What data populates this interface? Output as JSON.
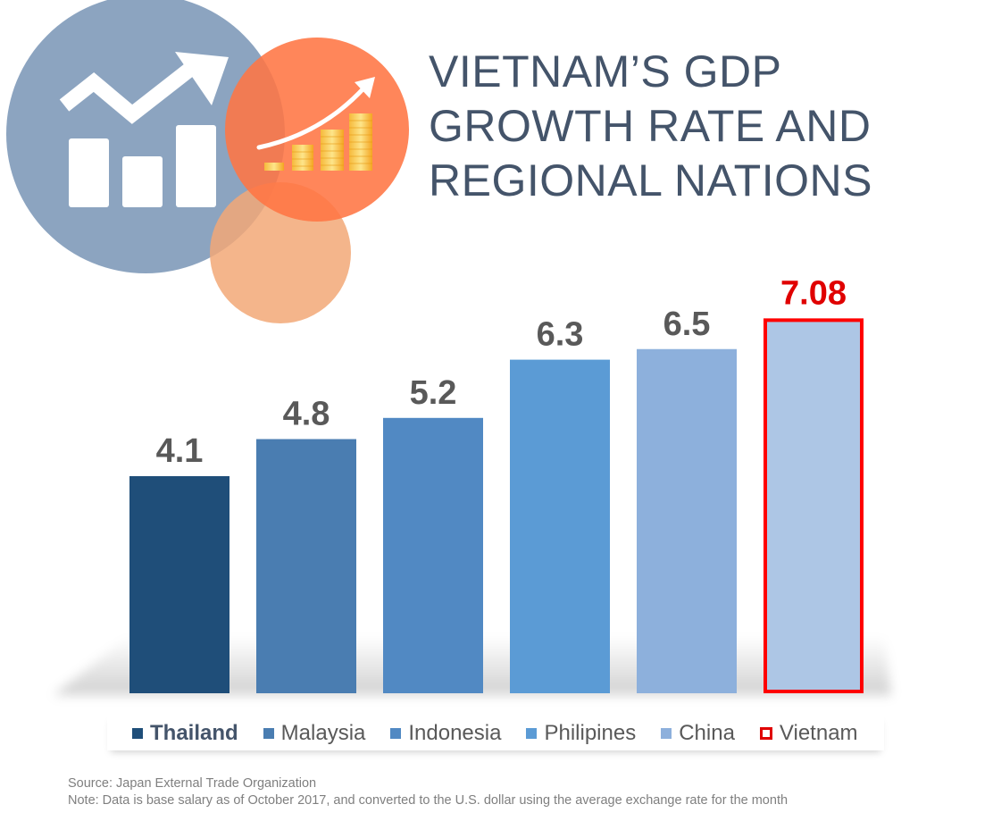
{
  "title_lines": [
    "VIETNAM’S GDP",
    "GROWTH RATE AND",
    "REGIONAL NATIONS"
  ],
  "chart_data": {
    "type": "bar",
    "title": "VIETNAM’S GDP GROWTH RATE AND REGIONAL NATIONS",
    "categories": [
      "Thailand",
      "Malaysia",
      "Indonesia",
      "Philipines",
      "China",
      "Vietnam"
    ],
    "values": [
      4.1,
      4.8,
      5.2,
      6.3,
      6.5,
      7.08
    ],
    "data_labels": [
      "4.1",
      "4.8",
      "5.2",
      "6.3",
      "6.5",
      "7.08"
    ],
    "colors": [
      "#1f4e79",
      "#4a7db1",
      "#5189c3",
      "#5b9bd5",
      "#8db0dc",
      "#adc6e5"
    ],
    "highlight": {
      "category": "Vietnam",
      "border_color": "#ff0000",
      "label_color": "#e00000"
    },
    "label_color": "#595959",
    "legend_position": "bottom",
    "grid": false,
    "axes_visible": false
  },
  "source": {
    "line1": "Source: Japan External Trade Organization",
    "line2": "Note: Data is base salary as of October 2017, and converted to the U.S. dollar using the average exchange rate for the month"
  },
  "icons": [
    "growth-chart-icon",
    "coin-growth-icon"
  ]
}
